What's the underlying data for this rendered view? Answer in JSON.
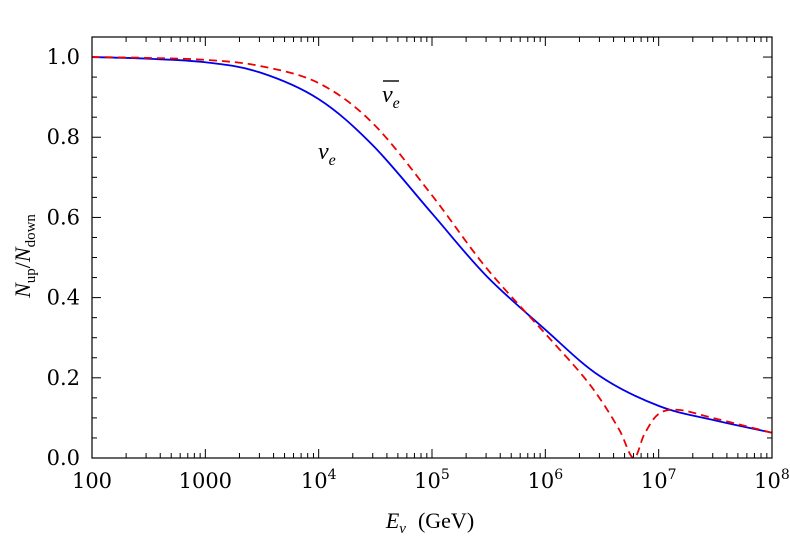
{
  "chart_data": {
    "type": "line",
    "title": "",
    "xlabel": "E_ν (GeV)",
    "xlabel_parts": {
      "symbol": "E",
      "subscript": "ν",
      "unit": "(GeV)"
    },
    "ylabel": "N_up/N_down",
    "ylabel_parts": {
      "n1": "N",
      "sub1": "up",
      "slash": "/",
      "n2": "N",
      "sub2": "down"
    },
    "xscale": "log",
    "xlim": [
      100,
      100000000
    ],
    "ylim": [
      0.0,
      1.05
    ],
    "x_ticks": [
      {
        "value": 100,
        "base": "100",
        "exp": ""
      },
      {
        "value": 1000,
        "base": "1000",
        "exp": ""
      },
      {
        "value": 10000,
        "base": "10",
        "exp": "4"
      },
      {
        "value": 100000,
        "base": "10",
        "exp": "5"
      },
      {
        "value": 1000000,
        "base": "10",
        "exp": "6"
      },
      {
        "value": 10000000,
        "base": "10",
        "exp": "7"
      },
      {
        "value": 100000000,
        "base": "10",
        "exp": "8"
      }
    ],
    "y_ticks": [
      {
        "value": 0.0,
        "label": "0.0"
      },
      {
        "value": 0.2,
        "label": "0.2"
      },
      {
        "value": 0.4,
        "label": "0.4"
      },
      {
        "value": 0.6,
        "label": "0.6"
      },
      {
        "value": 0.8,
        "label": "0.8"
      },
      {
        "value": 1.0,
        "label": "1.0"
      }
    ],
    "grid": false,
    "series": [
      {
        "name": "νe",
        "style": "solid",
        "color": "#0000ee",
        "x": [
          100,
          300,
          1000,
          3000,
          10000,
          30000,
          100000,
          300000,
          1000000,
          3000000,
          10000000,
          30000000,
          100000000
        ],
        "y": [
          1.0,
          0.996,
          0.987,
          0.962,
          0.895,
          0.78,
          0.61,
          0.455,
          0.32,
          0.205,
          0.13,
          0.095,
          0.063
        ]
      },
      {
        "name": "ν̄e",
        "style": "dashed",
        "color": "#ee0000",
        "x": [
          100,
          300,
          1000,
          3000,
          10000,
          30000,
          100000,
          300000,
          1000000,
          2000000,
          3000000,
          4500000,
          6000000,
          7500000,
          10000000,
          15000000,
          30000000,
          100000000
        ],
        "y": [
          1.0,
          0.998,
          0.993,
          0.978,
          0.935,
          0.835,
          0.655,
          0.475,
          0.31,
          0.215,
          0.15,
          0.07,
          0.0,
          0.06,
          0.11,
          0.12,
          0.1,
          0.063
        ]
      }
    ],
    "annotations": [
      {
        "text_base": "ν",
        "text_sub": "e",
        "bar": true,
        "points_to": "dashed"
      },
      {
        "text_base": "ν",
        "text_sub": "e",
        "bar": false,
        "points_to": "solid"
      }
    ]
  }
}
